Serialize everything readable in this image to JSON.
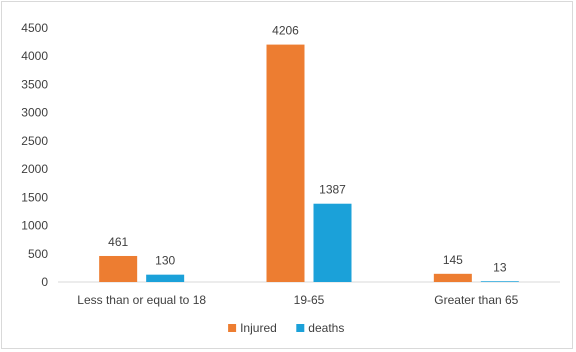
{
  "chart_data": {
    "type": "bar",
    "categories": [
      "Less than or equal to 18",
      "19-65",
      "Greater than 65"
    ],
    "series": [
      {
        "name": "Injured",
        "values": [
          461,
          4206,
          145
        ],
        "color": "#ED7D31"
      },
      {
        "name": "deaths",
        "values": [
          130,
          1387,
          13
        ],
        "color": "#1BA1D9"
      }
    ],
    "title": "",
    "xlabel": "",
    "ylabel": "",
    "ylim": [
      0,
      4500
    ],
    "yticks": [
      0,
      500,
      1000,
      1500,
      2000,
      2500,
      3000,
      3500,
      4000,
      4500
    ],
    "grid": false,
    "legend_position": "bottom",
    "data_labels": true
  }
}
